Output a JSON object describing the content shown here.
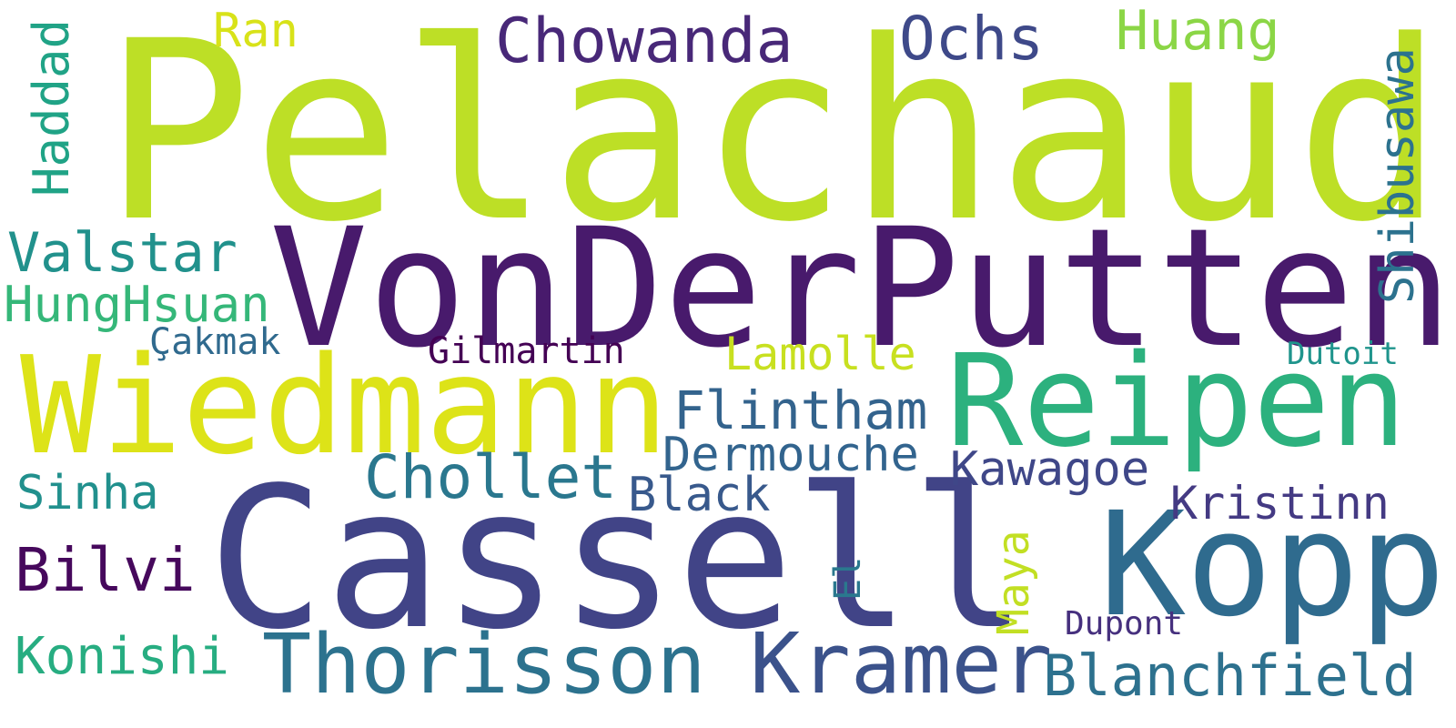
{
  "words": [
    {
      "id": "pelachaud",
      "text": "Pelachaud",
      "color": "#bddf26"
    },
    {
      "id": "vonderputten",
      "text": "VonDerPutten",
      "color": "#481a6c"
    },
    {
      "id": "cassell",
      "text": "Cassell",
      "color": "#414487"
    },
    {
      "id": "wiedmann",
      "text": "Wiedmann",
      "color": "#dde318"
    },
    {
      "id": "reipen",
      "text": "Reipen",
      "color": "#2cb17e"
    },
    {
      "id": "kopp",
      "text": "Kopp",
      "color": "#2f6b8e"
    },
    {
      "id": "kramer",
      "text": "Kramer",
      "color": "#3b528b"
    },
    {
      "id": "thorisson",
      "text": "Thorisson",
      "color": "#2c728e"
    },
    {
      "id": "chowanda",
      "text": "Chowanda",
      "color": "#482878"
    },
    {
      "id": "ochs",
      "text": "Ochs",
      "color": "#3e4989"
    },
    {
      "id": "huang",
      "text": "Huang",
      "color": "#8bd646"
    },
    {
      "id": "ran",
      "text": "Ran",
      "color": "#d8e219"
    },
    {
      "id": "haddad",
      "text": "Haddad",
      "color": "#20a386"
    },
    {
      "id": "shibusawa",
      "text": "Shibusawa",
      "color": "#2c728e"
    },
    {
      "id": "valstar",
      "text": "Valstar",
      "color": "#21918c"
    },
    {
      "id": "hunghsuan",
      "text": "HungHsuan",
      "color": "#35b779"
    },
    {
      "id": "cakmak",
      "text": "Çakmak",
      "color": "#306a8e"
    },
    {
      "id": "gilmartin",
      "text": "Gilmartin",
      "color": "#440154"
    },
    {
      "id": "lamolle",
      "text": "Lamolle",
      "color": "#c8e020"
    },
    {
      "id": "dutoit",
      "text": "Dutoit",
      "color": "#1f948c"
    },
    {
      "id": "flintham",
      "text": "Flintham",
      "color": "#33638d"
    },
    {
      "id": "dermouche",
      "text": "Dermouche",
      "color": "#32648e"
    },
    {
      "id": "kawagoe",
      "text": "Kawagoe",
      "color": "#3f4788"
    },
    {
      "id": "cholet",
      "text": "Chollet",
      "color": "#2a778e"
    },
    {
      "id": "black",
      "text": "Black",
      "color": "#38598c"
    },
    {
      "id": "sinha",
      "text": "Sinha",
      "color": "#21908d"
    },
    {
      "id": "kristinn",
      "text": "Kristinn",
      "color": "#443a83"
    },
    {
      "id": "bilvi",
      "text": "Bilvi",
      "color": "#46085c"
    },
    {
      "id": "el",
      "text": "El",
      "color": "#2a788e"
    },
    {
      "id": "maya",
      "text": "Maya",
      "color": "#c2df23"
    },
    {
      "id": "dupont",
      "text": "Dupont",
      "color": "#46307e"
    },
    {
      "id": "konishi",
      "text": "Konishi",
      "color": "#27ad81"
    },
    {
      "id": "blanchfield",
      "text": "Blanchfield",
      "color": "#2d718e"
    }
  ]
}
